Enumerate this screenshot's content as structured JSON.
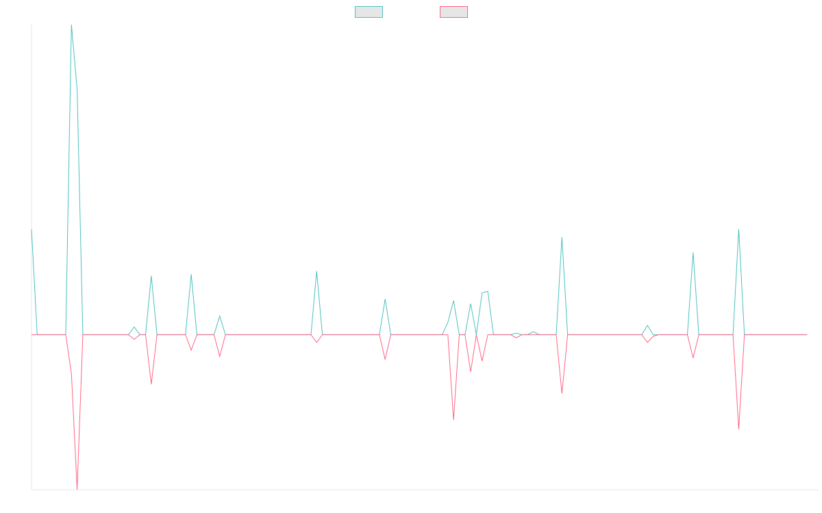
{
  "chart_data": {
    "type": "line",
    "title": "",
    "xlabel": "",
    "ylabel": "",
    "grid": false,
    "legend_position": "top-center",
    "x_count": 139,
    "ylim": [
      -100,
      200
    ],
    "series": [
      {
        "color": "#4bc0c0",
        "fill": "#e6e6e6",
        "values": [
          68,
          0,
          0,
          0,
          0,
          0,
          0,
          200,
          158,
          0,
          0,
          0,
          0,
          0,
          0,
          0,
          0,
          0,
          5,
          0,
          0,
          38,
          0,
          0,
          0,
          0,
          0,
          0,
          39,
          0,
          0,
          0,
          0,
          12,
          0,
          0,
          0,
          0,
          0,
          0,
          0,
          0,
          0,
          0,
          0,
          0,
          0,
          0,
          0,
          0,
          41,
          0,
          0,
          0,
          0,
          0,
          0,
          0,
          0,
          0,
          0,
          0,
          23,
          0,
          0,
          0,
          0,
          0,
          0,
          0,
          0,
          0,
          0,
          8,
          22,
          0,
          0,
          20,
          0,
          27,
          28,
          0,
          0,
          0,
          0,
          1,
          0,
          0,
          2,
          0,
          0,
          0,
          0,
          63,
          0,
          0,
          0,
          0,
          0,
          0,
          0,
          0,
          0,
          0,
          0,
          0,
          0,
          0,
          6,
          0,
          0,
          0,
          0,
          0,
          0,
          0,
          53,
          0,
          0,
          0,
          0,
          0,
          0,
          0,
          68,
          0,
          0,
          0,
          0,
          0,
          0,
          0,
          0,
          0,
          0,
          0,
          0
        ]
      },
      {
        "color": "#ff6384",
        "fill": "#e6e6e6",
        "values": [
          0,
          0,
          0,
          0,
          0,
          0,
          0,
          -25,
          -100,
          0,
          0,
          0,
          0,
          0,
          0,
          0,
          0,
          0,
          -3,
          0,
          0,
          -32,
          0,
          0,
          0,
          0,
          0,
          0,
          -10,
          0,
          0,
          0,
          0,
          -14,
          0,
          0,
          0,
          0,
          0,
          0,
          0,
          0,
          0,
          0,
          0,
          0,
          0,
          0,
          0,
          0,
          -5,
          0,
          0,
          0,
          0,
          0,
          0,
          0,
          0,
          0,
          0,
          0,
          -16,
          0,
          0,
          0,
          0,
          0,
          0,
          0,
          0,
          0,
          0,
          0,
          -55,
          0,
          0,
          -24,
          0,
          -17,
          0,
          0,
          0,
          0,
          0,
          -2,
          0,
          0,
          0,
          0,
          0,
          0,
          0,
          -38,
          0,
          0,
          0,
          0,
          0,
          0,
          0,
          0,
          0,
          0,
          0,
          0,
          0,
          0,
          -5,
          -1,
          0,
          0,
          0,
          0,
          0,
          0,
          -15,
          0,
          0,
          0,
          0,
          0,
          0,
          0,
          -61,
          0,
          0,
          0,
          0,
          0,
          0,
          0,
          0,
          0,
          0,
          0,
          0
        ]
      }
    ]
  }
}
